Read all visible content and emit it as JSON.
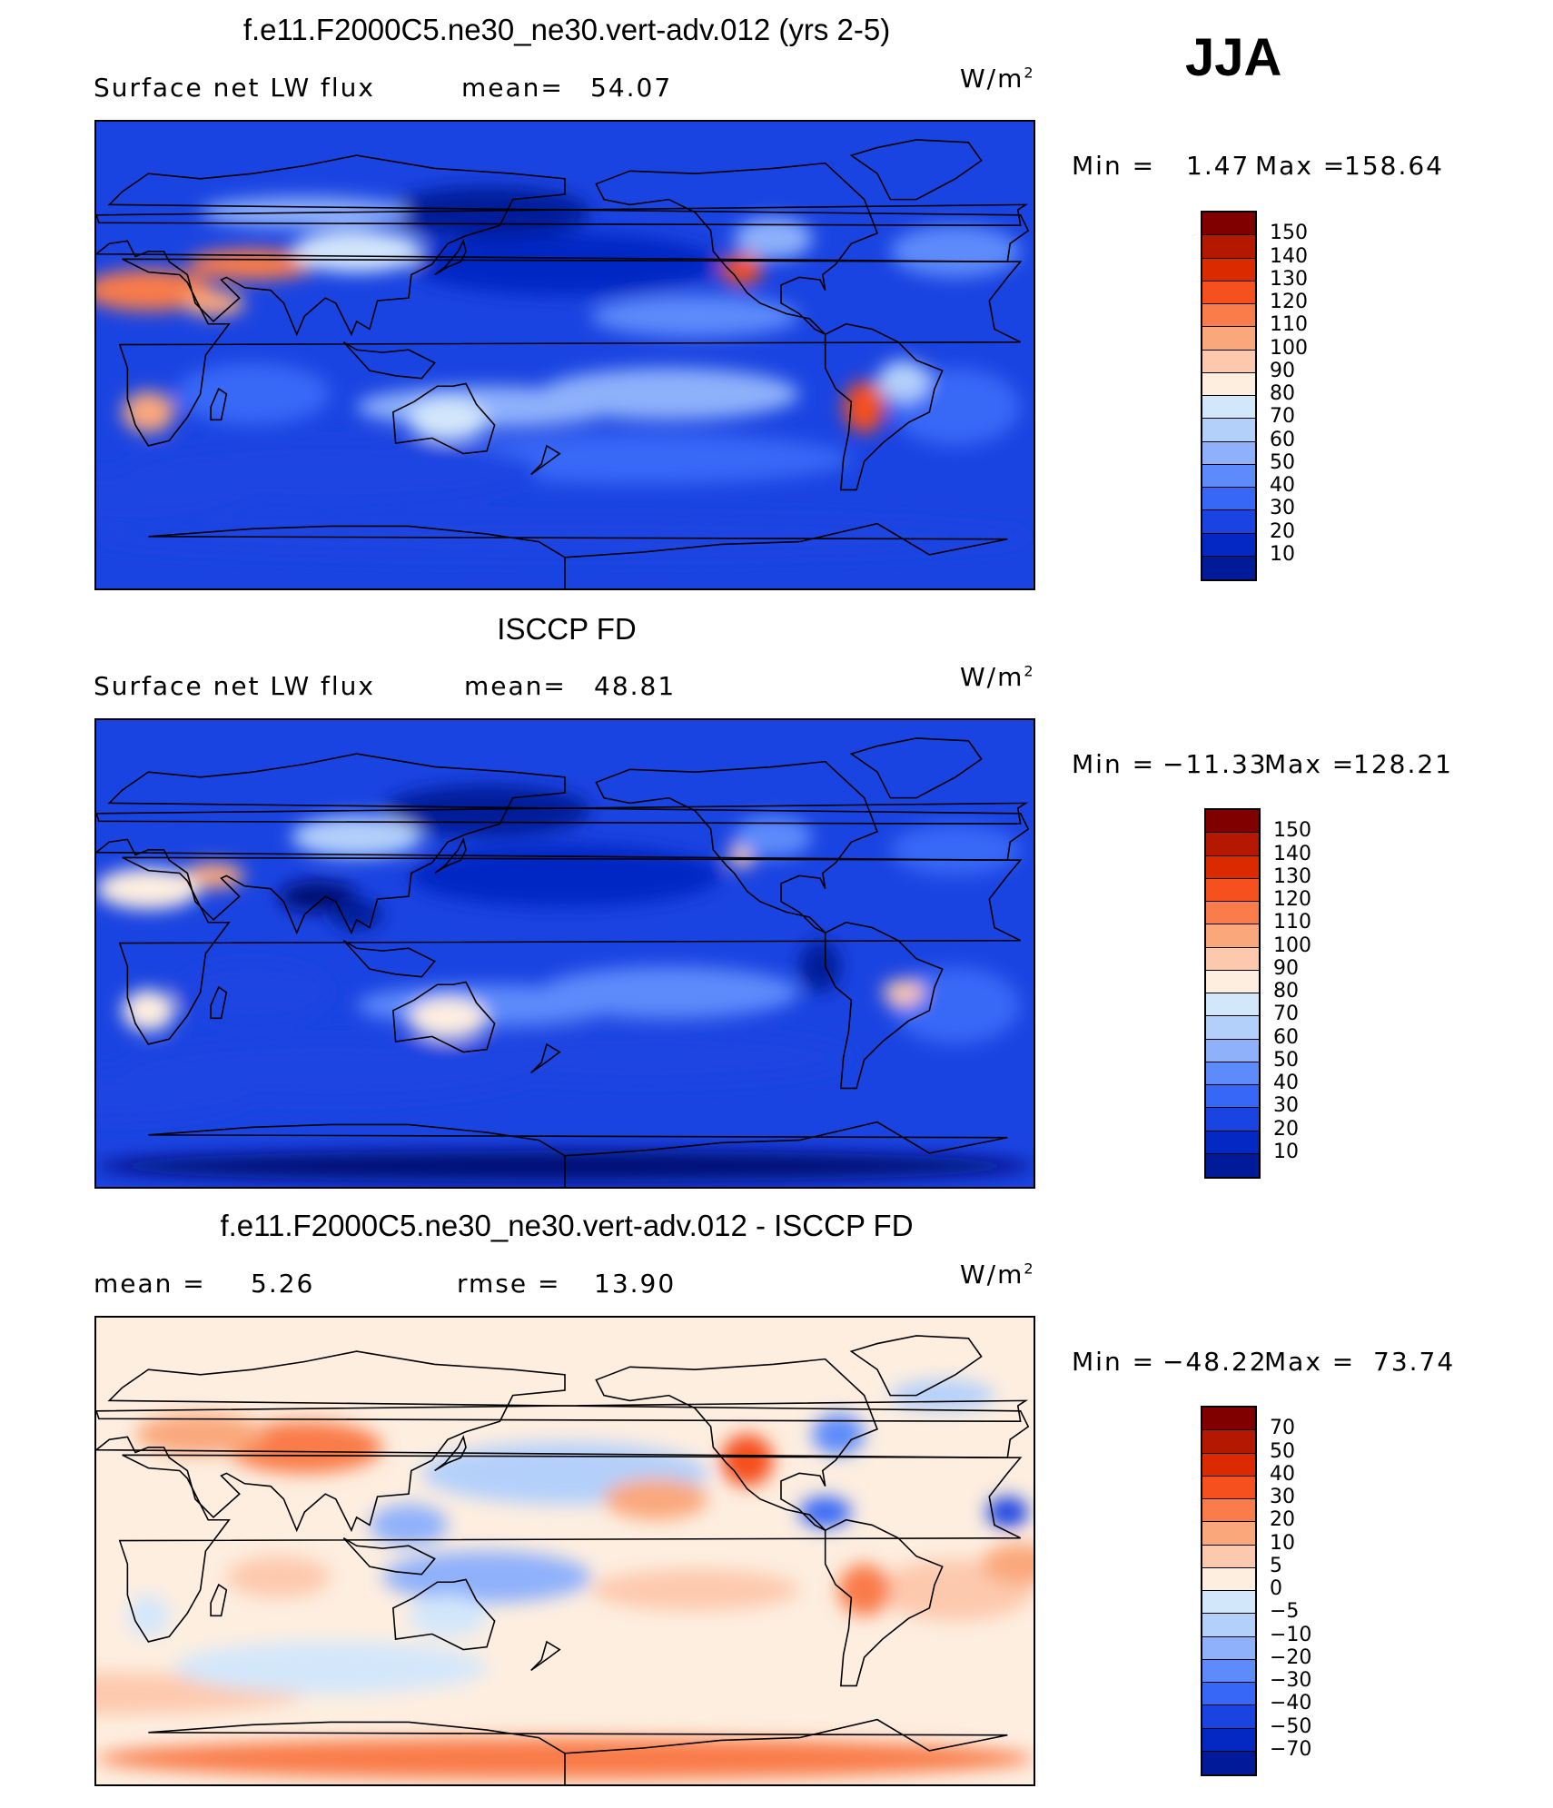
{
  "season": "JJA",
  "colors": {
    "scale": [
      "#800000",
      "#b51800",
      "#dc2a00",
      "#f5501e",
      "#f97c4a",
      "#faa87b",
      "#fdc9ae",
      "#fdeee0",
      "#d3e7fb",
      "#b3d0fb",
      "#8fb1fb",
      "#5d8bfb",
      "#3767f6",
      "#1a44e1",
      "#0428c3",
      "#001a9a",
      "#000a73"
    ],
    "ocean_deep": "#0b3bd6",
    "coast": "#000000"
  },
  "panels": [
    {
      "title": "f.e11.F2000C5.ne30_ne30.vert-adv.012 (yrs 2-5)",
      "left_label": "Surface net LW flux",
      "mid_label": "mean=",
      "mid_value": "54.07",
      "units": "W/m",
      "units_sup": "2",
      "min_label": "Min =",
      "min_value": "1.47",
      "max_label": "Max =",
      "max_value": "158.64",
      "colorbar": [
        "150",
        "140",
        "130",
        "120",
        "110",
        "100",
        "90",
        "80",
        "70",
        "60",
        "50",
        "40",
        "30",
        "20",
        "10"
      ],
      "kind": "model"
    },
    {
      "title": "ISCCP FD",
      "left_label": "Surface net LW flux",
      "mid_label": "mean=",
      "mid_value": "48.81",
      "units": "W/m",
      "units_sup": "2",
      "min_label": "Min =",
      "min_value": "−11.33",
      "max_label": "Max =",
      "max_value": "128.21",
      "colorbar": [
        "150",
        "140",
        "130",
        "120",
        "110",
        "100",
        "90",
        "80",
        "70",
        "60",
        "50",
        "40",
        "30",
        "20",
        "10"
      ],
      "kind": "obs"
    },
    {
      "title": "f.e11.F2000C5.ne30_ne30.vert-adv.012 - ISCCP FD",
      "left_label": "mean =",
      "left_value": "5.26",
      "mid_label": "rmse =",
      "mid_value": "13.90",
      "units": "W/m",
      "units_sup": "2",
      "min_label": "Min =",
      "min_value": "−48.22",
      "max_label": "Max =",
      "max_value": "73.74",
      "colorbar": [
        "70",
        "50",
        "40",
        "30",
        "20",
        "10",
        "5",
        "0",
        "−5",
        "−10",
        "−20",
        "−30",
        "−40",
        "−50",
        "−70"
      ],
      "kind": "diff"
    }
  ]
}
